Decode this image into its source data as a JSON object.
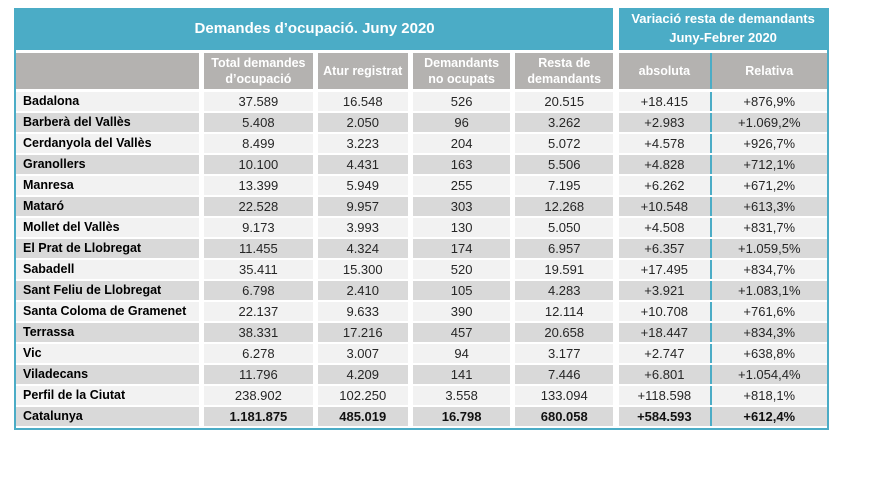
{
  "chart_data": {
    "type": "table",
    "title": "Demandes d’ocupació. Juny 2020",
    "variation_header": {
      "line1": "Variació resta de demandants",
      "line2": "Juny-Febrer 2020"
    },
    "columns": [
      "Total demandes d’ocupació",
      "Atur registrat",
      "Demandants no ocupats",
      "Resta de demandants",
      "absoluta",
      "Relativa"
    ],
    "rows": [
      {
        "name": "Badalona",
        "values": [
          "37.589",
          "16.548",
          "526",
          "20.515",
          "+18.415",
          "+876,9%"
        ]
      },
      {
        "name": "Barberà del Vallès",
        "values": [
          "5.408",
          "2.050",
          "96",
          "3.262",
          "+2.983",
          "+1.069,2%"
        ]
      },
      {
        "name": "Cerdanyola del Vallès",
        "values": [
          "8.499",
          "3.223",
          "204",
          "5.072",
          "+4.578",
          "+926,7%"
        ]
      },
      {
        "name": "Granollers",
        "values": [
          "10.100",
          "4.431",
          "163",
          "5.506",
          "+4.828",
          "+712,1%"
        ]
      },
      {
        "name": "Manresa",
        "values": [
          "13.399",
          "5.949",
          "255",
          "7.195",
          "+6.262",
          "+671,2%"
        ]
      },
      {
        "name": "Mataró",
        "values": [
          "22.528",
          "9.957",
          "303",
          "12.268",
          "+10.548",
          "+613,3%"
        ]
      },
      {
        "name": "Mollet del Vallès",
        "values": [
          "9.173",
          "3.993",
          "130",
          "5.050",
          "+4.508",
          "+831,7%"
        ]
      },
      {
        "name": "El Prat de Llobregat",
        "values": [
          "11.455",
          "4.324",
          "174",
          "6.957",
          "+6.357",
          "+1.059,5%"
        ]
      },
      {
        "name": "Sabadell",
        "values": [
          "35.411",
          "15.300",
          "520",
          "19.591",
          "+17.495",
          "+834,7%"
        ]
      },
      {
        "name": "Sant Feliu de Llobregat",
        "values": [
          "6.798",
          "2.410",
          "105",
          "4.283",
          "+3.921",
          "+1.083,1%"
        ]
      },
      {
        "name": "Santa Coloma de Gramenet",
        "values": [
          "22.137",
          "9.633",
          "390",
          "12.114",
          "+10.708",
          "+761,6%"
        ]
      },
      {
        "name": "Terrassa",
        "values": [
          "38.331",
          "17.216",
          "457",
          "20.658",
          "+18.447",
          "+834,3%"
        ]
      },
      {
        "name": "Vic",
        "values": [
          "6.278",
          "3.007",
          "94",
          "3.177",
          "+2.747",
          "+638,8%"
        ]
      },
      {
        "name": "Viladecans",
        "values": [
          "11.796",
          "4.209",
          "141",
          "7.446",
          "+6.801",
          "+1.054,4%"
        ]
      },
      {
        "name": "Perfil de la Ciutat",
        "values": [
          "238.902",
          "102.250",
          "3.558",
          "133.094",
          "+118.598",
          "+818,1%"
        ]
      },
      {
        "name": "Catalunya",
        "is_total": true,
        "values": [
          "1.181.875",
          "485.019",
          "16.798",
          "680.058",
          "+584.593",
          "+612,4%"
        ]
      }
    ]
  },
  "colors": {
    "teal_accent": "#4bacc6",
    "header_gray": "#b4b2b0",
    "row_light": "#f2f2f2",
    "row_dark": "#d9d9d9"
  }
}
